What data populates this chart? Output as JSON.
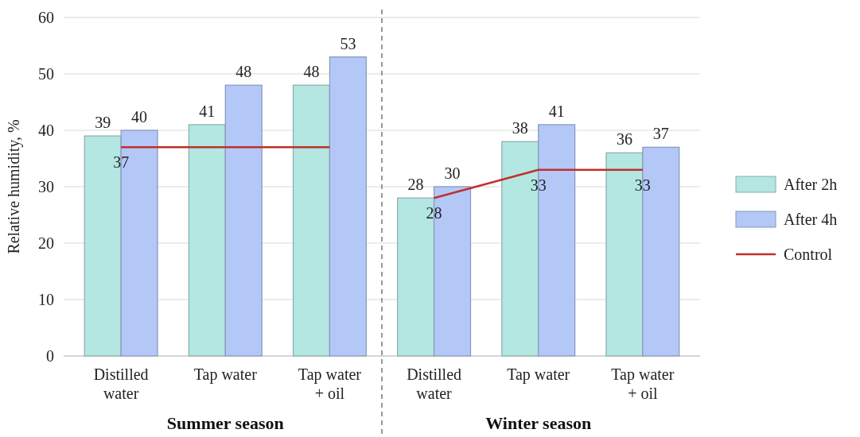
{
  "chart_data": {
    "type": "bar",
    "ylabel": "Relative humidity, %",
    "categories": [
      "Distilled water",
      "Tap water",
      "Tap water + oil",
      "Distilled water",
      "Tap water",
      "Tap water + oil"
    ],
    "series": [
      {
        "name": "After 2h",
        "color": "#b4e6e2",
        "values": [
          39,
          41,
          48,
          28,
          38,
          36
        ],
        "value_labels": [
          "39",
          "41",
          "48",
          "28",
          "38",
          "36"
        ]
      },
      {
        "name": "After 4h",
        "color": "#b4c8f7",
        "values": [
          40,
          48,
          53,
          30,
          41,
          37
        ],
        "value_labels": [
          "40",
          "48",
          "53",
          "30",
          "41",
          "37"
        ]
      },
      {
        "name": "Control",
        "type": "line",
        "color": "#c0302a",
        "values": [
          37,
          37,
          37,
          null,
          null,
          null
        ],
        "value_labels": [
          "37",
          null,
          null,
          null,
          null,
          null
        ]
      },
      {
        "type": "line",
        "color": "#c0302a",
        "values": [
          null,
          null,
          null,
          28,
          33,
          33
        ],
        "value_labels": [
          null,
          null,
          null,
          "28",
          "33",
          "33"
        ]
      }
    ],
    "ylim": [
      0,
      60
    ],
    "yticks": [
      0,
      10,
      20,
      30,
      40,
      50,
      60
    ],
    "grid": "y",
    "legend": "right",
    "annotations": [
      "Summer season",
      "Winter season"
    ]
  }
}
